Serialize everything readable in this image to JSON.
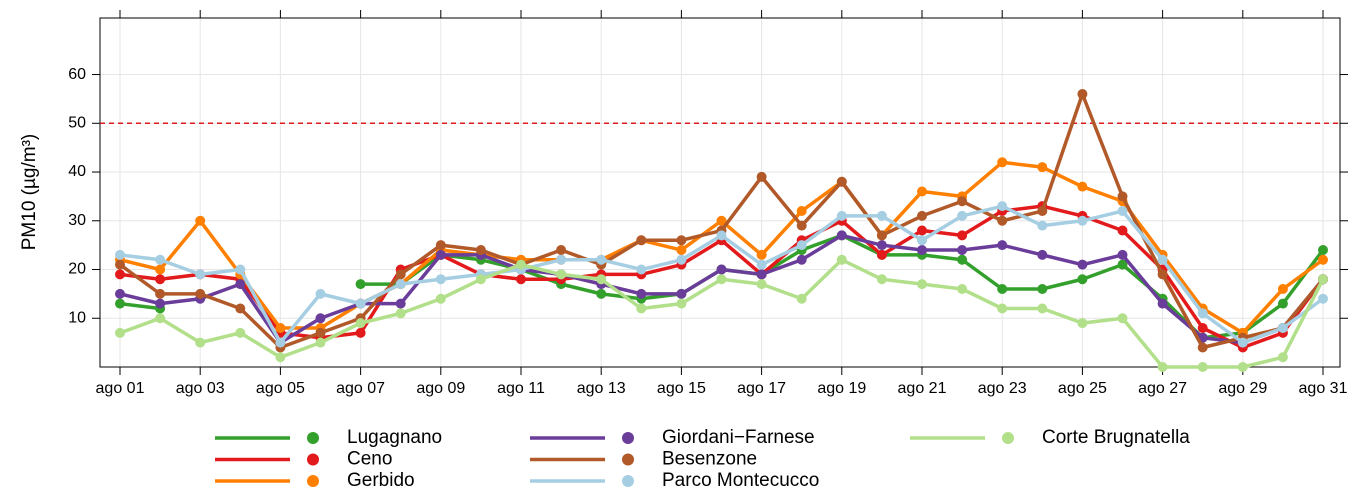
{
  "chart_data": {
    "type": "line",
    "y_label": "PM10 (µg/m³)",
    "categories": [
      "ago 01",
      null,
      "ago 03",
      null,
      "ago 05",
      null,
      "ago 07",
      null,
      "ago 09",
      null,
      "ago 11",
      null,
      "ago 13",
      null,
      "ago 15",
      null,
      "ago 17",
      null,
      "ago 19",
      null,
      "ago 21",
      null,
      "ago 23",
      null,
      "ago 25",
      null,
      "ago 27",
      null,
      "ago 29",
      null,
      "ago 31"
    ],
    "ylim": [
      0,
      71.6
    ],
    "yticks": [
      10,
      20,
      30,
      40,
      50,
      60
    ],
    "grid": true,
    "threshold": 50,
    "threshold_color": "#e31a1c",
    "legend": "bottom",
    "series": [
      {
        "name": "Lugagnano",
        "color": "#33a02c",
        "values": [
          13,
          12,
          null,
          null,
          null,
          null,
          17,
          17,
          23,
          22,
          20,
          17,
          15,
          14,
          15,
          20,
          19,
          24,
          27,
          23,
          23,
          22,
          16,
          16,
          18,
          21,
          14,
          6,
          7,
          13,
          24
        ]
      },
      {
        "name": "Ceno",
        "color": "#e31a1c",
        "values": [
          19,
          18,
          19,
          18,
          7,
          6,
          7,
          20,
          23,
          19,
          18,
          18,
          19,
          19,
          21,
          26,
          19,
          26,
          30,
          23,
          28,
          27,
          32,
          33,
          31,
          28,
          20,
          8,
          4,
          7,
          18
        ]
      },
      {
        "name": "Gerbido",
        "color": "#ff7f00",
        "values": [
          22,
          20,
          30,
          19,
          8,
          8,
          13,
          17,
          24,
          23,
          22,
          22,
          22,
          26,
          24,
          30,
          23,
          32,
          38,
          27,
          36,
          35,
          42,
          41,
          37,
          34,
          23,
          12,
          7,
          16,
          22
        ]
      },
      {
        "name": "Giordani−Farnese",
        "color": "#6a3d9a",
        "values": [
          15,
          13,
          14,
          17,
          5,
          10,
          13,
          13,
          23,
          23,
          20,
          19,
          17,
          15,
          15,
          20,
          19,
          22,
          27,
          25,
          24,
          24,
          25,
          23,
          21,
          23,
          13,
          6,
          5,
          8,
          18
        ]
      },
      {
        "name": "Besenzone",
        "color": "#b15928",
        "values": [
          21,
          15,
          15,
          12,
          4,
          7,
          10,
          19,
          25,
          24,
          21,
          24,
          21,
          26,
          26,
          28,
          39,
          29,
          38,
          27,
          31,
          34,
          30,
          32,
          56,
          35,
          19,
          4,
          6,
          8,
          18
        ]
      },
      {
        "name": "Parco Montecucco",
        "color": "#a6cee3",
        "values": [
          23,
          22,
          19,
          20,
          5,
          15,
          13,
          17,
          18,
          19,
          20,
          22,
          22,
          20,
          22,
          27,
          21,
          25,
          31,
          31,
          26,
          31,
          33,
          29,
          30,
          32,
          22,
          11,
          5,
          8,
          14
        ]
      },
      {
        "name": "Corte Brugnatella",
        "color": "#b2df8a",
        "values": [
          7,
          10,
          5,
          7,
          2,
          5,
          9,
          11,
          14,
          18,
          21,
          19,
          18,
          12,
          13,
          18,
          17,
          14,
          22,
          18,
          17,
          16,
          12,
          12,
          9,
          10,
          0,
          0,
          0,
          2,
          18
        ]
      }
    ]
  }
}
